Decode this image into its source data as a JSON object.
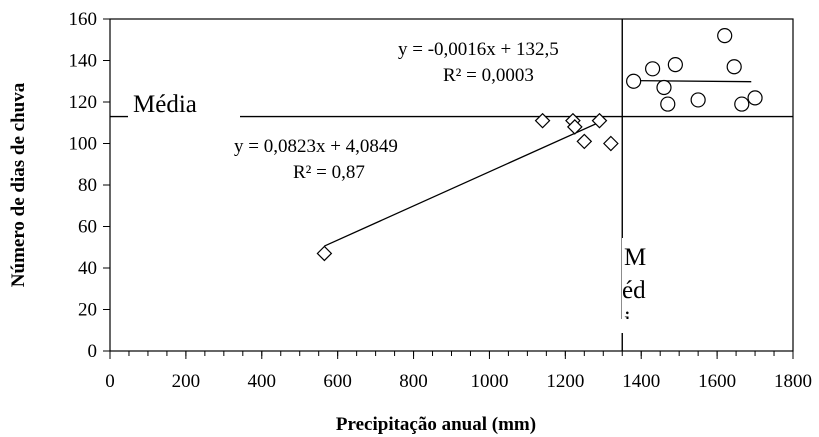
{
  "chart_data": {
    "type": "scatter",
    "xlabel": "Precipitação anual (mm)",
    "ylabel": "Número de dias de chuva",
    "xlim": [
      0,
      1800
    ],
    "ylim": [
      0,
      160
    ],
    "xticks": [
      0,
      200,
      400,
      600,
      800,
      1000,
      1200,
      1400,
      1600,
      1800
    ],
    "yticks": [
      0,
      20,
      40,
      60,
      80,
      100,
      120,
      140,
      160
    ],
    "x_minor_step": 50,
    "grid": false,
    "series": [
      {
        "marker": "diamond",
        "points": [
          [
            565,
            47
          ],
          [
            1140,
            111
          ],
          [
            1220,
            111
          ],
          [
            1225,
            108
          ],
          [
            1250,
            101
          ],
          [
            1290,
            111
          ],
          [
            1320,
            100
          ]
        ],
        "trendline": {
          "x_range": [
            565,
            1290
          ],
          "slope": 0.0823,
          "intercept": 4.0849
        }
      },
      {
        "marker": "circle",
        "points": [
          [
            1380,
            130
          ],
          [
            1430,
            136
          ],
          [
            1460,
            127
          ],
          [
            1470,
            119
          ],
          [
            1490,
            138
          ],
          [
            1550,
            121
          ],
          [
            1620,
            152
          ],
          [
            1645,
            137
          ],
          [
            1665,
            119
          ],
          [
            1700,
            122
          ]
        ],
        "trendline": {
          "x_range": [
            1380,
            1690
          ],
          "slope": -0.0016,
          "intercept": 132.5
        }
      }
    ],
    "reference_lines": [
      {
        "orientation": "horizontal",
        "y": 113
      },
      {
        "orientation": "vertical",
        "x": 1350
      }
    ],
    "annotations": {
      "h_media": "Média",
      "v_media_lines": [
        "M",
        "éd",
        "i"
      ],
      "eq1": "y = -0,0016x + 132,5",
      "r2_1": "R² = 0,0003",
      "eq2": "y = 0,0823x + 4,0849",
      "r2_2": "R² = 0,87"
    }
  }
}
